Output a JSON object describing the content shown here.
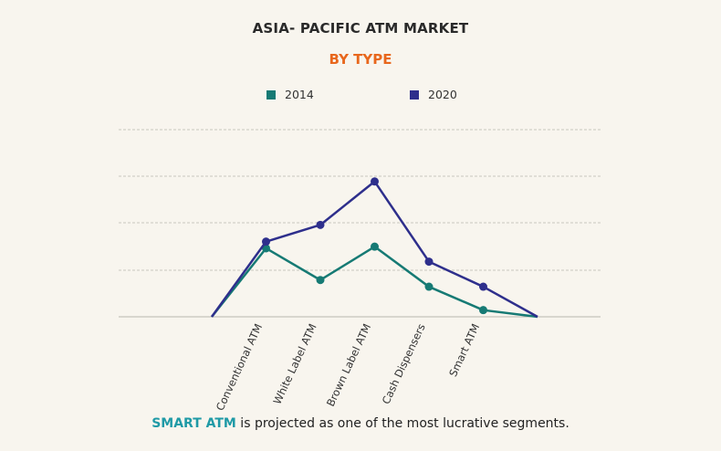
{
  "colors": {
    "background": "#f8f5ee",
    "series_2014": "#167a74",
    "series_2020": "#2e2f8c",
    "subtitle": "#e8671c",
    "highlight": "#1f9aa6",
    "grid": "#c9c6bf"
  },
  "chart_data": {
    "type": "line",
    "title": "ASIA- PACIFIC ATM MARKET",
    "subtitle": "BY TYPE",
    "categories": [
      "Conventional ATM",
      "White Label ATM",
      "Brown Label ATM",
      "Cash Dispensers",
      "Smart ATM"
    ],
    "x": [
      "",
      "Conventional ATM",
      "White Label ATM",
      "Brown Label ATM",
      "Cash Dispensers",
      "Smart ATM",
      ""
    ],
    "series": [
      {
        "name": "2014",
        "color": "#167a74",
        "values": [
          0,
          41,
          22,
          42,
          18,
          4,
          0
        ]
      },
      {
        "name": "2020",
        "color": "#2e2f8c",
        "values": [
          0,
          45,
          55,
          81,
          33,
          18,
          0
        ]
      }
    ],
    "ylim": [
      0,
      100
    ],
    "grid": true,
    "legend": "top-center",
    "xlabel": "",
    "ylabel": ""
  },
  "footnote": {
    "highlight": "SMART ATM",
    "rest": " is projected as one of the most lucrative segments."
  }
}
